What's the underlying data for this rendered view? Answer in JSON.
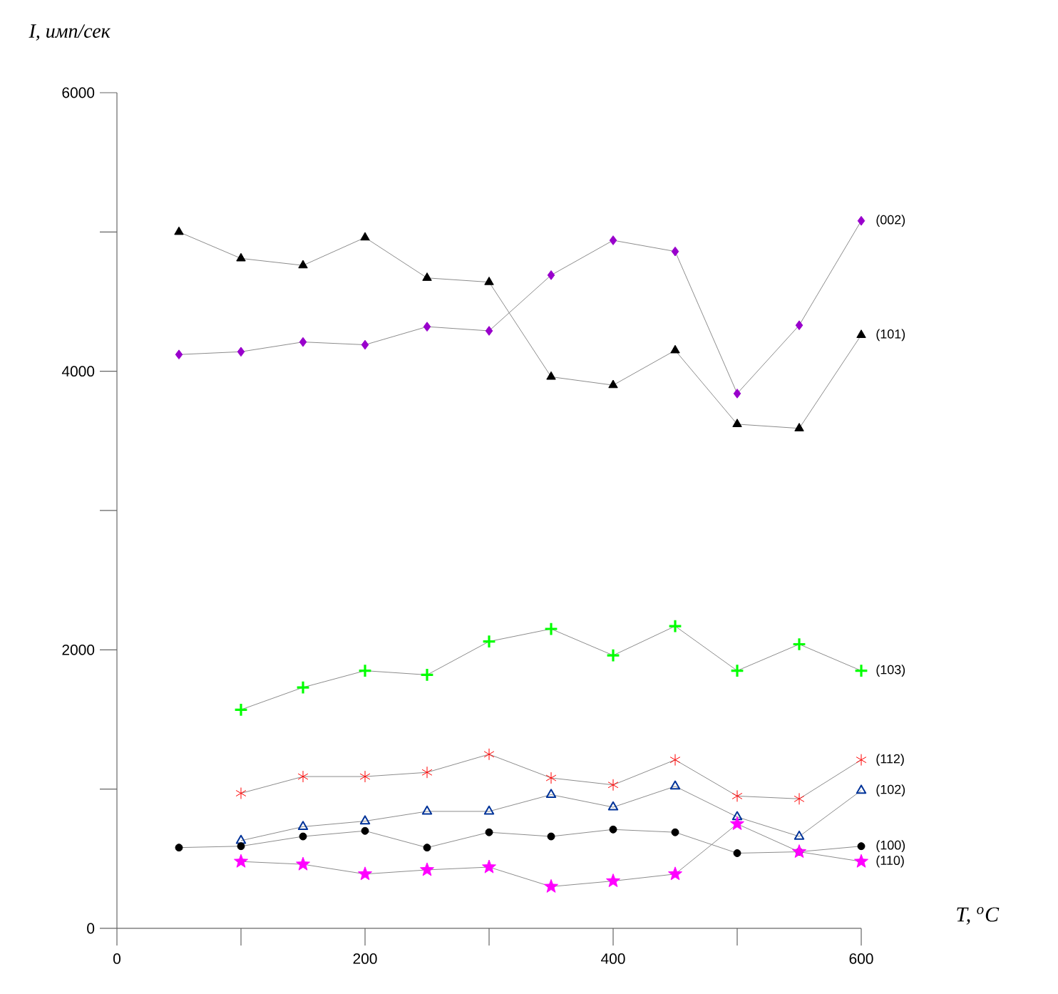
{
  "chart_data": {
    "type": "line",
    "xlabel": "T, $^{o}$C",
    "ylabel": "I, имп/сек",
    "x": [
      50,
      100,
      150,
      200,
      250,
      300,
      350,
      400,
      450,
      500,
      550,
      600
    ],
    "xlim": [
      0,
      600
    ],
    "ylim": [
      0,
      6000
    ],
    "xticks": [
      0,
      {
        "value": 100,
        "label": null
      },
      200,
      {
        "value": 300,
        "label": null
      },
      400,
      {
        "value": 500,
        "label": null
      },
      600
    ],
    "yticks": [
      0,
      {
        "value": 1000,
        "label": null
      },
      2000,
      {
        "value": 3000,
        "label": null
      },
      4000,
      {
        "value": 5000,
        "label": null
      },
      6000
    ],
    "series": [
      {
        "name": "(002)",
        "color": "#9900cc",
        "marker": "diamond",
        "values": [
          4120,
          4140,
          4210,
          4190,
          4320,
          4290,
          4690,
          4940,
          4860,
          3840,
          4330,
          5080
        ]
      },
      {
        "name": "(101)",
        "color": "#000000",
        "marker": "triangle",
        "values": [
          5000,
          4810,
          4760,
          4960,
          4670,
          4640,
          3960,
          3900,
          4150,
          3620,
          3590,
          4260
        ]
      },
      {
        "name": "(103)",
        "color": "#00ff00",
        "marker": "cross",
        "values": [
          null,
          1570,
          1730,
          1850,
          1820,
          2060,
          2150,
          1960,
          2170,
          1850,
          2040,
          1850
        ]
      },
      {
        "name": "(112)",
        "color": "#ff0000",
        "marker": "cross",
        "values": [
          null,
          970,
          1090,
          1090,
          1120,
          1250,
          1080,
          1030,
          1210,
          950,
          930,
          1210
        ]
      },
      {
        "name": "(102)",
        "color": "#003399",
        "marker": "triangle",
        "values": [
          null,
          630,
          730,
          770,
          840,
          840,
          960,
          870,
          1020,
          800,
          660,
          990
        ]
      },
      {
        "name": "(100)",
        "color": "#000000",
        "marker": "circle",
        "values": [
          580,
          590,
          660,
          700,
          580,
          690,
          660,
          710,
          690,
          540,
          550,
          590
        ]
      },
      {
        "name": "(110)",
        "color": "#ff00ff",
        "marker": "star",
        "values": [
          null,
          480,
          460,
          390,
          420,
          440,
          300,
          340,
          390,
          750,
          550,
          480
        ]
      }
    ]
  }
}
